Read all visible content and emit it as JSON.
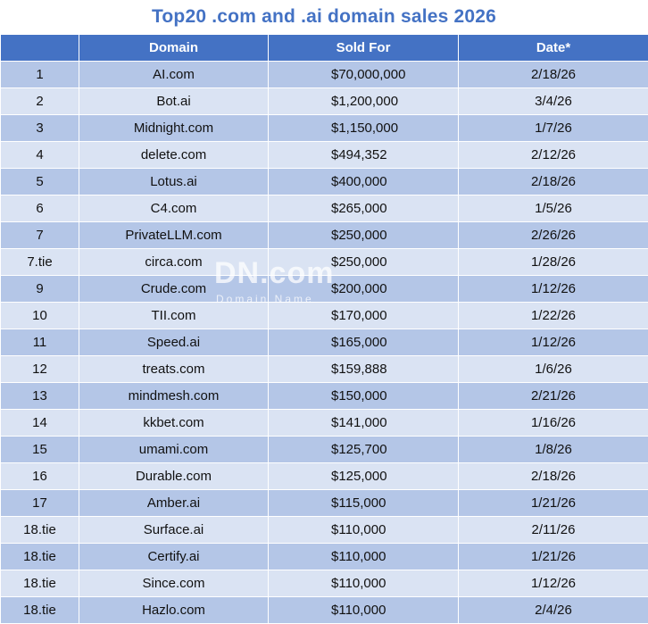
{
  "title": "Top20 .com and .ai domain sales 2026",
  "table": {
    "headers": [
      "",
      "Domain",
      "Sold For",
      "Date*"
    ],
    "rows": [
      {
        "rank": "1",
        "domain": "AI.com",
        "sold": "$70,000,000",
        "date": "2/18/26"
      },
      {
        "rank": "2",
        "domain": "Bot.ai",
        "sold": "$1,200,000",
        "date": "3/4/26"
      },
      {
        "rank": "3",
        "domain": "Midnight.com",
        "sold": "$1,150,000",
        "date": "1/7/26"
      },
      {
        "rank": "4",
        "domain": "delete.com",
        "sold": "$494,352",
        "date": "2/12/26"
      },
      {
        "rank": "5",
        "domain": "Lotus.ai",
        "sold": "$400,000",
        "date": "2/18/26"
      },
      {
        "rank": "6",
        "domain": "C4.com",
        "sold": "$265,000",
        "date": "1/5/26"
      },
      {
        "rank": "7",
        "domain": "PrivateLLM.com",
        "sold": "$250,000",
        "date": "2/26/26"
      },
      {
        "rank": "7.tie",
        "domain": "circa.com",
        "sold": "$250,000",
        "date": "1/28/26"
      },
      {
        "rank": "9",
        "domain": "Crude.com",
        "sold": "$200,000",
        "date": "1/12/26"
      },
      {
        "rank": "10",
        "domain": "TII.com",
        "sold": "$170,000",
        "date": "1/22/26"
      },
      {
        "rank": "11",
        "domain": "Speed.ai",
        "sold": "$165,000",
        "date": "1/12/26"
      },
      {
        "rank": "12",
        "domain": "treats.com",
        "sold": "$159,888",
        "date": "1/6/26"
      },
      {
        "rank": "13",
        "domain": "mindmesh.com",
        "sold": "$150,000",
        "date": "2/21/26"
      },
      {
        "rank": "14",
        "domain": "kkbet.com",
        "sold": "$141,000",
        "date": "1/16/26"
      },
      {
        "rank": "15",
        "domain": "umami.com",
        "sold": "$125,700",
        "date": "1/8/26"
      },
      {
        "rank": "16",
        "domain": "Durable.com",
        "sold": "$125,000",
        "date": "2/18/26"
      },
      {
        "rank": "17",
        "domain": "Amber.ai",
        "sold": "$115,000",
        "date": "1/21/26"
      },
      {
        "rank": "18.tie",
        "domain": "Surface.ai",
        "sold": "$110,000",
        "date": "2/11/26"
      },
      {
        "rank": "18.tie",
        "domain": "Certify.ai",
        "sold": "$110,000",
        "date": "1/21/26"
      },
      {
        "rank": "18.tie",
        "domain": "Since.com",
        "sold": "$110,000",
        "date": "1/12/26"
      },
      {
        "rank": "18.tie",
        "domain": "Hazlo.com",
        "sold": "$110,000",
        "date": "2/4/26"
      }
    ]
  },
  "watermark": {
    "logo": "DN.com",
    "subtitle": "Domain Name"
  },
  "colors": {
    "title": "#4472c4",
    "header_bg": "#4472c4",
    "row_dark": "#b4c6e7",
    "row_light": "#dae3f3"
  }
}
